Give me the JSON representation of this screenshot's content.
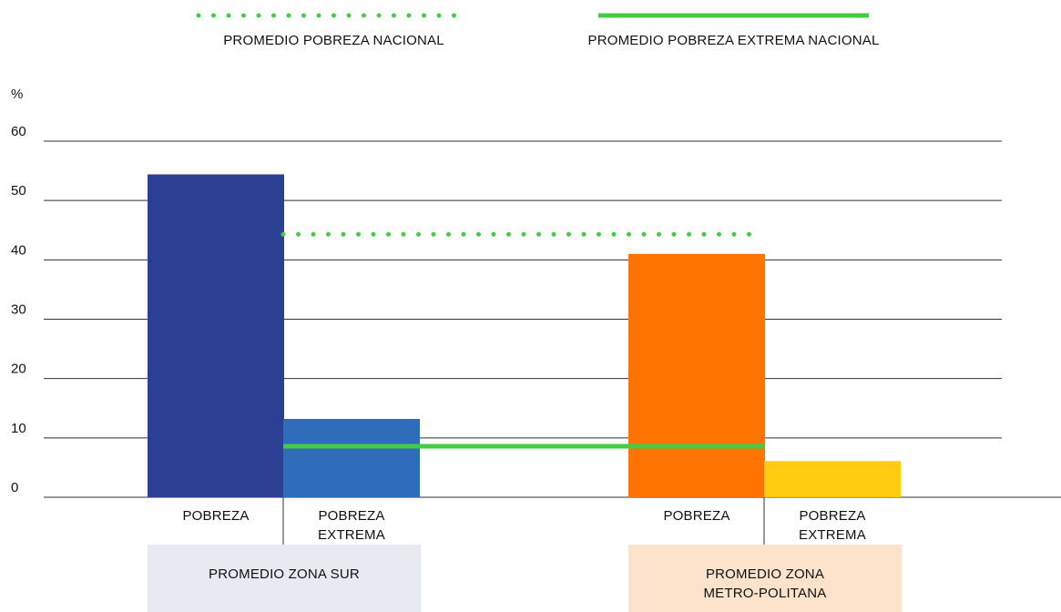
{
  "chart_data": {
    "type": "bar",
    "y_label": "%",
    "ylim": [
      0,
      60
    ],
    "yticks": [
      0,
      10,
      20,
      30,
      40,
      50,
      60
    ],
    "grid": true,
    "groups": [
      {
        "name": "PROMEDIO ZONA SUR",
        "box_color": "#e8eaf2",
        "categories": [
          "POBREZA",
          "POBREZA EXTREMA"
        ],
        "values": [
          54.4,
          13.2
        ],
        "colors": [
          "#2b3f93",
          "#2f6dbb"
        ]
      },
      {
        "name": "PROMEDIO ZONA METRO-POLITANA",
        "box_color": "#fde3cc",
        "categories": [
          "POBREZA",
          "POBREZA EXTREMA"
        ],
        "values": [
          41.0,
          6.1
        ],
        "colors": [
          "#ff7300",
          "#ffcc11"
        ]
      }
    ],
    "reference_lines": [
      {
        "name": "PROMEDIO POBREZA NACIONAL",
        "value": 44.3,
        "style": "dotted",
        "color": "#44cc44"
      },
      {
        "name": "PROMEDIO POBREZA EXTREMA NACIONAL",
        "value": 8.6,
        "style": "solid",
        "color": "#44cc44"
      }
    ]
  }
}
